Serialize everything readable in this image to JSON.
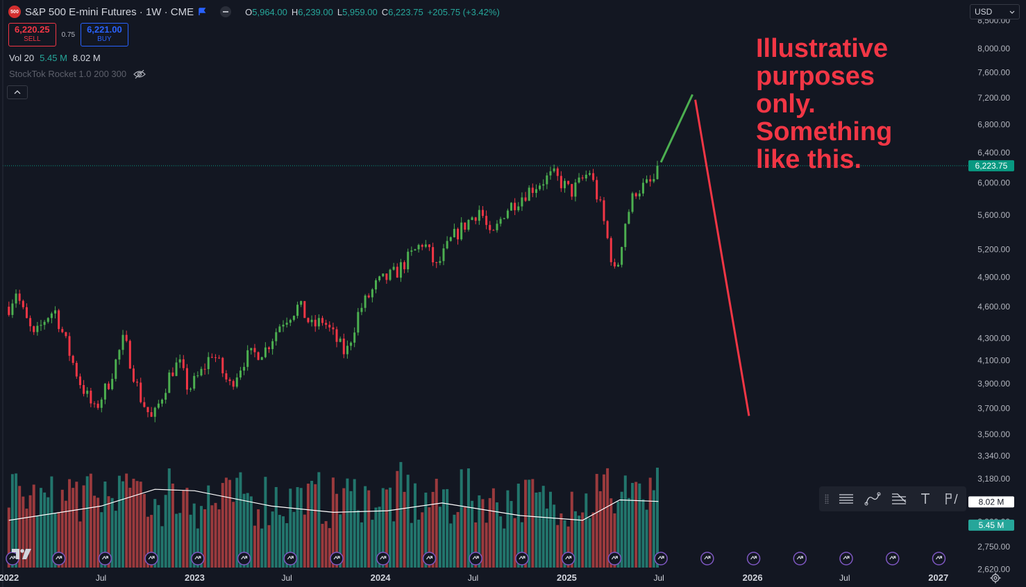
{
  "header": {
    "logo_text": "500",
    "symbol_title": "S&P 500 E-mini Futures · 1W · CME",
    "ohlc": [
      {
        "key": "O",
        "value": "5,964.00"
      },
      {
        "key": "H",
        "value": "6,239.00"
      },
      {
        "key": "L",
        "value": "5,959.00"
      },
      {
        "key": "C",
        "value": "6,223.75"
      }
    ],
    "change": "+205.75 (+3.42%)"
  },
  "trade": {
    "sell_price": "6,220.25",
    "sell_label": "SELL",
    "spread": "0.75",
    "buy_price": "6,221.00",
    "buy_label": "BUY"
  },
  "volume_legend": {
    "label": "Vol 20",
    "volume": "5.45 M",
    "ma": "8.02 M"
  },
  "indicator": {
    "label": "StockTok Rocket 1.0 200 300"
  },
  "currency": {
    "label": "USD"
  },
  "annotation": {
    "text": "Illustrative purposes only. Something like this."
  },
  "colors": {
    "background": "#131722",
    "up": "#4caf50",
    "down": "#f23645",
    "vol_up": "#22756c",
    "vol_down": "#9a3a3d",
    "ma_line": "#ffffff",
    "event_icon": "#7e57c2",
    "price_badge": "#089981",
    "vol_badge": "#26a69a"
  },
  "chart_data": {
    "type": "candlestick",
    "timeframe": "1W",
    "x_tick_labels": [
      "2022",
      "Jul",
      "2023",
      "Jul",
      "2024",
      "Jul",
      "2025",
      "Jul",
      "2026",
      "Jul",
      "2027"
    ],
    "y_tick_labels": [
      "8,500.00",
      "8,000.00",
      "7,600.00",
      "7,200.00",
      "6,800.00",
      "6,400.00",
      "6,000.00",
      "5,600.00",
      "5,200.00",
      "4,900.00",
      "4,600.00",
      "4,300.00",
      "4,100.00",
      "3,900.00",
      "3,700.00",
      "3,500.00",
      "3,340.00",
      "3,180.00",
      "3,020.00",
      "2,900.00",
      "2,750.00",
      "2,620.00"
    ],
    "y_scale": "log",
    "y_range": [
      2560,
      8800
    ],
    "x_range": [
      "2021-12-20",
      "2027-03-01"
    ],
    "last_price": "6,223.75",
    "volume_ma_value": "8.02 M",
    "volume_last_value": "5.45 M",
    "price_path": [
      {
        "date": "2022-01-01",
        "close": 4600
      },
      {
        "date": "2022-01-15",
        "close": 4760
      },
      {
        "date": "2022-02-01",
        "close": 4500
      },
      {
        "date": "2022-02-20",
        "close": 4300
      },
      {
        "date": "2022-03-15",
        "close": 4500
      },
      {
        "date": "2022-04-01",
        "close": 4570
      },
      {
        "date": "2022-05-01",
        "close": 4150
      },
      {
        "date": "2022-05-20",
        "close": 3920
      },
      {
        "date": "2022-06-18",
        "close": 3680
      },
      {
        "date": "2022-07-15",
        "close": 3900
      },
      {
        "date": "2022-08-15",
        "close": 4300
      },
      {
        "date": "2022-09-15",
        "close": 3800
      },
      {
        "date": "2022-10-10",
        "close": 3600
      },
      {
        "date": "2022-11-15",
        "close": 4000
      },
      {
        "date": "2022-12-01",
        "close": 4080
      },
      {
        "date": "2022-12-20",
        "close": 3850
      },
      {
        "date": "2023-01-15",
        "close": 4000
      },
      {
        "date": "2023-02-05",
        "close": 4180
      },
      {
        "date": "2023-03-10",
        "close": 3880
      },
      {
        "date": "2023-04-10",
        "close": 4120
      },
      {
        "date": "2023-05-20",
        "close": 4200
      },
      {
        "date": "2023-06-20",
        "close": 4450
      },
      {
        "date": "2023-07-25",
        "close": 4610
      },
      {
        "date": "2023-08-20",
        "close": 4400
      },
      {
        "date": "2023-09-10",
        "close": 4470
      },
      {
        "date": "2023-10-25",
        "close": 4150
      },
      {
        "date": "2023-11-20",
        "close": 4560
      },
      {
        "date": "2023-12-25",
        "close": 4830
      },
      {
        "date": "2024-02-01",
        "close": 4950
      },
      {
        "date": "2024-03-25",
        "close": 5290
      },
      {
        "date": "2024-04-20",
        "close": 5000
      },
      {
        "date": "2024-05-20",
        "close": 5320
      },
      {
        "date": "2024-07-15",
        "close": 5680
      },
      {
        "date": "2024-08-05",
        "close": 5300
      },
      {
        "date": "2024-09-01",
        "close": 5650
      },
      {
        "date": "2024-10-15",
        "close": 5890
      },
      {
        "date": "2024-11-15",
        "close": 6030
      },
      {
        "date": "2024-12-05",
        "close": 6100
      },
      {
        "date": "2025-01-10",
        "close": 5880
      },
      {
        "date": "2025-02-15",
        "close": 6150
      },
      {
        "date": "2025-03-10",
        "close": 5650
      },
      {
        "date": "2025-04-07",
        "close": 4900
      },
      {
        "date": "2025-04-25",
        "close": 5500
      },
      {
        "date": "2025-05-15",
        "close": 5900
      },
      {
        "date": "2025-06-01",
        "close": 5950
      },
      {
        "date": "2025-06-20",
        "close": 6010
      },
      {
        "date": "2025-06-30",
        "close": 6223.75
      }
    ],
    "volume_ma_path": [
      {
        "date": "2022-01-01",
        "value": 2910
      },
      {
        "date": "2022-07-01",
        "value": 3000
      },
      {
        "date": "2022-10-15",
        "value": 3110
      },
      {
        "date": "2023-01-01",
        "value": 3100
      },
      {
        "date": "2023-06-01",
        "value": 3000
      },
      {
        "date": "2023-10-01",
        "value": 2960
      },
      {
        "date": "2024-01-15",
        "value": 2970
      },
      {
        "date": "2024-05-01",
        "value": 3020
      },
      {
        "date": "2024-10-01",
        "value": 2940
      },
      {
        "date": "2025-02-01",
        "value": 2910
      },
      {
        "date": "2025-04-15",
        "value": 3040
      },
      {
        "date": "2025-06-30",
        "value": 3030
      }
    ],
    "projection": {
      "up_leg": [
        {
          "date": "2025-07-05",
          "price": 6270
        },
        {
          "date": "2025-09-05",
          "price": 7250
        }
      ],
      "down_leg": [
        {
          "date": "2025-09-05",
          "price": 7170
        },
        {
          "date": "2025-12-25",
          "price": 3640
        }
      ]
    },
    "event_markers_every_weeks": 13
  }
}
